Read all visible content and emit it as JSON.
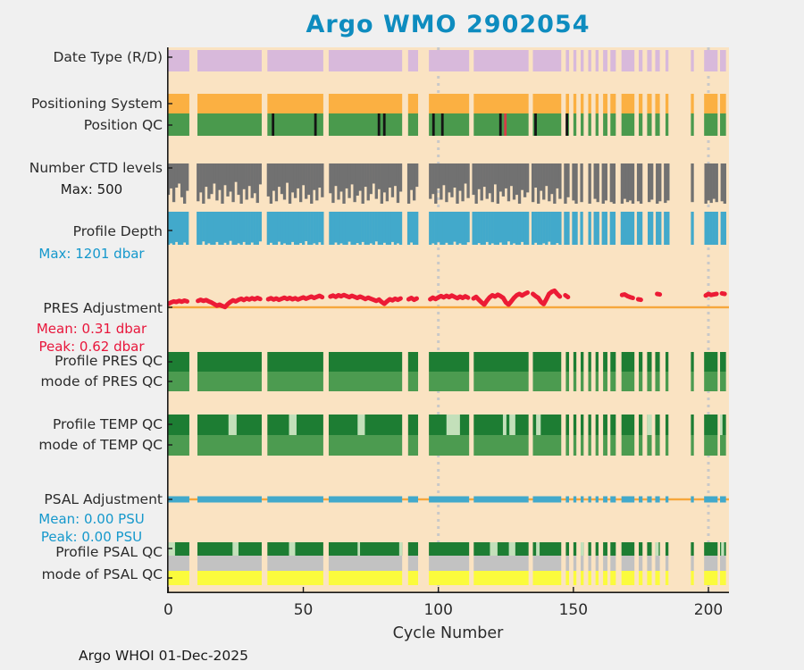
{
  "title": "Argo WMO 2902054",
  "footer": "Argo WHOI 01-Dec-2025",
  "xlabel": "Cycle Number",
  "chart_data": {
    "type": "bar",
    "subtype": "argo-status-bands",
    "xlim": [
      -0.45,
      207.6
    ],
    "xticks": [
      0,
      50,
      100,
      150,
      200
    ],
    "xtick_labels": [
      "0",
      "50",
      "100",
      "150",
      "200"
    ],
    "gridlines_x": [
      100,
      200
    ],
    "colors": {
      "plot_bg": "#FAE3C2",
      "fig_bg": "#F0F0F0",
      "gridline": "#C9C9C9",
      "spine": "#1A1A1A",
      "title_text": "#0E8CBF",
      "blue_text": "#1598CC",
      "red_text": "#E8163B",
      "dark_text": "#2B2B2B"
    },
    "cycle_segments": [
      [
        -0.45,
        7.8
      ],
      [
        10.8,
        34.6
      ],
      [
        36.7,
        57.4
      ],
      [
        59.4,
        86.6
      ],
      [
        88.8,
        92.5
      ],
      [
        96.5,
        111.4
      ],
      [
        113.1,
        133.4
      ],
      [
        135,
        145.5
      ],
      [
        147.2,
        148.4
      ],
      [
        150,
        151.1
      ],
      [
        152.7,
        153.8
      ],
      [
        155.5,
        156.6
      ],
      [
        158.2,
        159.3
      ],
      [
        161,
        162.6
      ],
      [
        163.7,
        165.7
      ],
      [
        167.8,
        172.6
      ],
      [
        174.2,
        175.6
      ],
      [
        177.3,
        179
      ],
      [
        180.3,
        182
      ],
      [
        184.1,
        185.2
      ],
      [
        193.5,
        194.6
      ],
      [
        198.4,
        203.4
      ],
      [
        204.3,
        206.5
      ]
    ],
    "bands": {
      "date_type": {
        "label": "Date Type (R/D)",
        "color": "#D8B9DB"
      },
      "positioning_system": {
        "label": "Positioning System",
        "color": "#FBB042"
      },
      "position_qc": {
        "label": "Position QC",
        "color": "#4A9A4D",
        "black_marks": [
          38.8,
          54.5,
          78,
          80,
          98.2,
          101.5,
          123,
          136,
          147.6
        ],
        "red_marks": [
          124.8
        ],
        "mark_colors": {
          "black": "#141414",
          "red": "#D63C46"
        }
      },
      "n_ctd_levels": {
        "label": "Number CTD levels",
        "max_label": "Max: 500",
        "max": 500,
        "color": "#717171",
        "runs": [
          {
            "s": 0,
            "v": [
              390,
              310,
              480,
              300,
              250,
              420,
              500,
              340
            ]
          },
          {
            "s": 11,
            "v": [
              470,
              360,
              500,
              290,
              440,
              380,
              250,
              460,
              330,
              500,
              270,
              410,
              350,
              480,
              230,
              390,
              500,
              320,
              450,
              280,
              430,
              370,
              490,
              260
            ]
          },
          {
            "s": 37,
            "v": [
              410,
              500,
              340,
              470,
              290,
              380,
              450,
              240,
              500,
              360,
              430,
              310,
              480,
              270,
              440,
              390,
              500,
              330,
              460,
              300,
              420
            ]
          },
          {
            "s": 60,
            "v": [
              370,
              490,
              280,
              450,
              350,
              500,
              310,
              430,
              260,
              480,
              400,
              340,
              500,
              290,
              460,
              380,
              250,
              440,
              320,
              500,
              360,
              470,
              300,
              420,
              280,
              490,
              350
            ]
          },
          {
            "s": 89,
            "v": [
              500,
              330,
              460,
              290
            ]
          },
          {
            "s": 97,
            "v": [
              440,
              380,
              500,
              310,
              450,
              270,
              480,
              360,
              420,
              300,
              500,
              340,
              470,
              250,
              430
            ]
          },
          {
            "s": 113,
            "v": [
              390,
              500,
              320,
              460,
              290,
              440,
              370,
              480,
              260,
              500,
              350,
              410,
              310,
              470,
              280,
              450,
              390,
              500,
              330,
              420,
              360
            ]
          },
          {
            "s": 135,
            "v": [
              480,
              300,
              500,
              340,
              450,
              280,
              470,
              380,
              500,
              310,
              440
            ]
          },
          {
            "s": 147,
            "v": [
              500,
              420
            ]
          },
          {
            "s": 150,
            "v": [
              460,
              500
            ]
          },
          {
            "s": 153,
            "v": [
              480
            ]
          },
          {
            "s": 156,
            "v": [
              500
            ]
          },
          {
            "s": 158,
            "v": [
              440,
              480
            ]
          },
          {
            "s": 161,
            "v": [
              500,
              460
            ]
          },
          {
            "s": 164,
            "v": [
              480,
              500
            ]
          },
          {
            "s": 168,
            "v": [
              500,
              440,
              480,
              460,
              500
            ]
          },
          {
            "s": 174,
            "v": [
              470,
              500
            ]
          },
          {
            "s": 178,
            "v": [
              480,
              450
            ]
          },
          {
            "s": 181,
            "v": [
              500,
              470
            ]
          },
          {
            "s": 184,
            "v": [
              490,
              460
            ]
          },
          {
            "s": 194,
            "v": [
              480
            ]
          },
          {
            "s": 199,
            "v": [
              500,
              460,
              490,
              440,
              480
            ]
          },
          {
            "s": 205,
            "v": [
              470,
              500
            ]
          }
        ]
      },
      "profile_depth": {
        "label": "Profile Depth",
        "max_label": "Max: 1201 dbar",
        "max": 1201,
        "unit": "dbar",
        "color": "#42A9CB",
        "runs": [
          {
            "s": 0,
            "v": [
              1201,
              1150,
              1201,
              1100,
              1201,
              1201,
              1120,
              1201
            ]
          },
          {
            "s": 11,
            "v": [
              1201,
              1201,
              1080,
              1201,
              1150,
              1201,
              1201,
              1100,
              1201,
              1201,
              1130,
              1201,
              1060,
              1201,
              1201,
              1150,
              1201,
              1100,
              1201,
              1201,
              1120,
              1201,
              1201,
              1080
            ]
          },
          {
            "s": 37,
            "v": [
              1201,
              1130,
              1201,
              1201,
              1090,
              1201,
              1150,
              1201,
              1201,
              1100,
              1201,
              1201,
              1140,
              1201,
              1070,
              1201,
              1201,
              1150,
              1201,
              1110,
              1201
            ]
          },
          {
            "s": 60,
            "v": [
              1201,
              1201,
              1120,
              1201,
              1150,
              1201,
              1201,
              1090,
              1201,
              1201,
              1140,
              1201,
              1100,
              1201,
              1201,
              1150,
              1201,
              1080,
              1201,
              1201,
              1130,
              1201,
              1201,
              1100,
              1201,
              1150,
              1201
            ]
          },
          {
            "s": 89,
            "v": [
              1201,
              1120,
              1201,
              1201
            ]
          },
          {
            "s": 97,
            "v": [
              1201,
              1150,
              1201,
              1100,
              1201,
              1201,
              1130,
              1201,
              1201,
              1090,
              1201,
              1150,
              1201,
              1201,
              1110
            ]
          },
          {
            "s": 113,
            "v": [
              1201,
              1201,
              1140,
              1201,
              1201,
              1100,
              1201,
              1150,
              1201,
              1201,
              1120,
              1201,
              1201,
              1080,
              1201,
              1150,
              1201,
              1201,
              1100,
              1201,
              1201
            ]
          },
          {
            "s": 135,
            "v": [
              1201,
              1130,
              1201,
              1201,
              1150,
              1201,
              1090,
              1201,
              1201,
              1140,
              1201
            ]
          },
          {
            "s": 147,
            "v": [
              1201,
              1201
            ]
          },
          {
            "s": 150,
            "v": [
              1201,
              1201
            ]
          },
          {
            "s": 153,
            "v": [
              1201
            ]
          },
          {
            "s": 156,
            "v": [
              1201
            ]
          },
          {
            "s": 158,
            "v": [
              1201,
              1201
            ]
          },
          {
            "s": 161,
            "v": [
              1201,
              1201
            ]
          },
          {
            "s": 164,
            "v": [
              1201,
              1201
            ]
          },
          {
            "s": 168,
            "v": [
              1201,
              1201,
              1201,
              1201,
              1201
            ]
          },
          {
            "s": 174,
            "v": [
              1201,
              1201
            ]
          },
          {
            "s": 178,
            "v": [
              1201,
              1201
            ]
          },
          {
            "s": 181,
            "v": [
              1201,
              1201
            ]
          },
          {
            "s": 184,
            "v": [
              1201,
              1201
            ]
          },
          {
            "s": 194,
            "v": [
              1201
            ]
          },
          {
            "s": 199,
            "v": [
              1201,
              1201,
              1201,
              1201,
              1201
            ]
          },
          {
            "s": 205,
            "v": [
              1201,
              1201
            ]
          }
        ]
      },
      "pres_adjustment": {
        "label": "PRES Adjustment",
        "mean_label": "Mean: 0.31 dbar",
        "peak_label": "Peak: 0.62 dbar",
        "mean": 0.31,
        "peak": 0.62,
        "unit": "dbar",
        "color": "#EC1B35",
        "zero_line_color": "#F6A73C",
        "runs": [
          {
            "s": 0,
            "v": [
              0.13,
              0.18,
              0.22,
              0.2,
              0.24,
              0.21,
              0.25,
              0.22
            ]
          },
          {
            "s": 11,
            "v": [
              0.24,
              0.28,
              0.24,
              0.27,
              0.22,
              0.18,
              0.12,
              0.06,
              0.1,
              0.05,
              0.01,
              0.12,
              0.2,
              0.26,
              0.22,
              0.28,
              0.32,
              0.27,
              0.33,
              0.29,
              0.34,
              0.3,
              0.35,
              0.31
            ]
          },
          {
            "s": 37,
            "v": [
              0.3,
              0.34,
              0.29,
              0.33,
              0.28,
              0.32,
              0.36,
              0.31,
              0.35,
              0.3,
              0.34,
              0.29,
              0.33,
              0.37,
              0.32,
              0.36,
              0.4,
              0.35,
              0.39,
              0.43,
              0.38
            ]
          },
          {
            "s": 60,
            "v": [
              0.4,
              0.44,
              0.39,
              0.45,
              0.41,
              0.46,
              0.42,
              0.38,
              0.43,
              0.39,
              0.35,
              0.4,
              0.36,
              0.31,
              0.36,
              0.32,
              0.28,
              0.24,
              0.29,
              0.2,
              0.13,
              0.22,
              0.3,
              0.26,
              0.32,
              0.28,
              0.33
            ]
          },
          {
            "s": 89,
            "v": [
              0.3,
              0.35,
              0.28,
              0.33
            ]
          },
          {
            "s": 97,
            "v": [
              0.3,
              0.36,
              0.31,
              0.37,
              0.42,
              0.37,
              0.43,
              0.38,
              0.44,
              0.39,
              0.34,
              0.4,
              0.35,
              0.41,
              0.36
            ]
          },
          {
            "s": 113,
            "v": [
              0.33,
              0.39,
              0.28,
              0.18,
              0.1,
              0.25,
              0.37,
              0.45,
              0.4,
              0.47,
              0.42,
              0.35,
              0.18,
              0.1,
              0.22,
              0.35,
              0.45,
              0.5,
              0.44,
              0.5,
              0.55
            ]
          },
          {
            "s": 135,
            "v": [
              0.5,
              0.42,
              0.35,
              0.2,
              0.12,
              0.3,
              0.5,
              0.58,
              0.62,
              0.5,
              0.4
            ]
          },
          {
            "s": 147,
            "v": [
              0.45,
              0.38
            ]
          },
          {
            "s": 168,
            "v": [
              0.46,
              0.48,
              0.42,
              0.38,
              0.35
            ]
          },
          {
            "s": 174,
            "v": [
              0.3,
              0.28
            ]
          },
          {
            "s": 181,
            "v": [
              0.5,
              0.48
            ]
          },
          {
            "s": 199,
            "v": [
              0.44,
              0.5,
              0.46,
              0.48,
              0.5
            ]
          },
          {
            "s": 205,
            "v": [
              0.52,
              0.5
            ]
          }
        ]
      },
      "profile_pres_qc": {
        "label": "Profile PRES QC",
        "color": "#1D7D33"
      },
      "mode_pres_qc": {
        "label": "mode of PRES QC",
        "color": "#4C9B50"
      },
      "profile_temp_qc": {
        "label": "Profile TEMP QC",
        "color": "#1D7D33",
        "light_color": "#C3E0BA",
        "light_segments": [
          [
            22.3,
            25.3
          ],
          [
            44.7,
            47.5
          ],
          [
            70.1,
            72.8
          ],
          [
            103,
            108
          ],
          [
            111.9,
            113.1
          ],
          [
            123.9,
            125.2
          ],
          [
            126.3,
            128.5
          ],
          [
            136.2,
            137.9
          ],
          [
            177.3,
            179
          ],
          [
            204.3,
            205.2
          ]
        ]
      },
      "mode_temp_qc": {
        "label": "mode of TEMP QC",
        "color": "#4C9B50"
      },
      "psal_adjustment": {
        "label": "PSAL Adjustment",
        "mean_label": "Mean: 0.00 PSU",
        "peak_label": "Peak: 0.00 PSU",
        "mean": 0.0,
        "peak": 0.0,
        "unit": "PSU",
        "color": "#42A9CB",
        "zero_line_color": "#F6A73C",
        "value": 0.0
      },
      "profile_psal_qc": {
        "label": "Profile PSAL QC",
        "color": "#1D7D33",
        "light_color": "#C3E0BA",
        "light_segments": [
          [
            -0.45,
            2.5
          ],
          [
            23.8,
            26
          ],
          [
            44.7,
            47
          ],
          [
            70.1,
            71
          ],
          [
            85.5,
            87.4
          ],
          [
            119.1,
            121.9
          ],
          [
            126.1,
            128.5
          ],
          [
            136.2,
            137.5
          ],
          [
            152.7,
            153.8
          ],
          [
            180.3,
            181.6
          ],
          [
            204.7,
            205.8
          ]
        ]
      },
      "psal_qc_gray_band": {
        "color": "#C2C2C2"
      },
      "mode_psal_qc": {
        "label": "mode of PSAL QC",
        "color": "#FBFB3C"
      }
    }
  }
}
